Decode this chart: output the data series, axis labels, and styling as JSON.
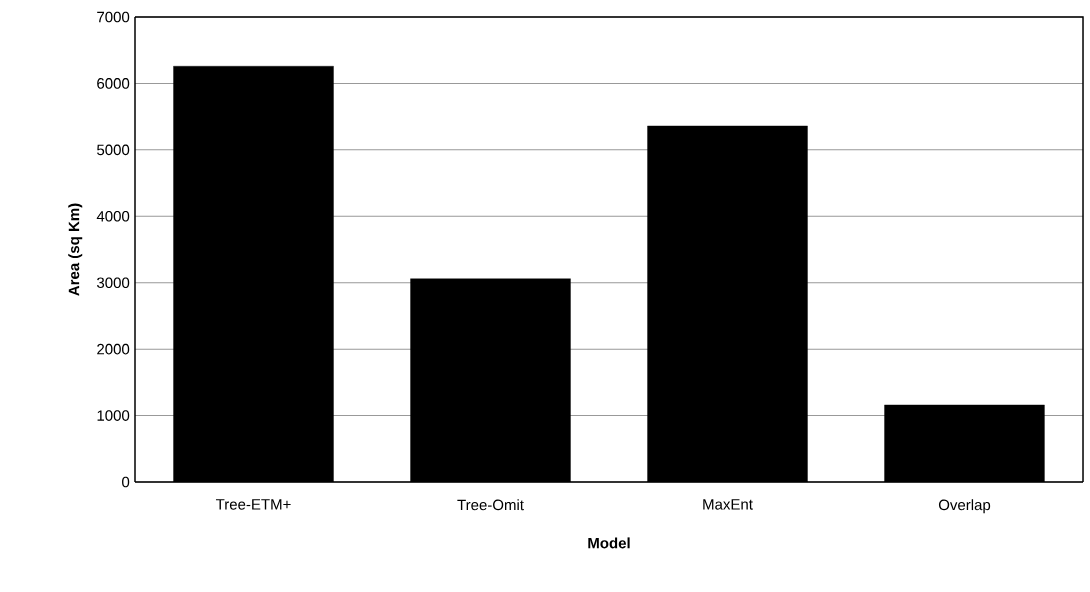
{
  "chart_data": {
    "type": "bar",
    "xlabel": "Model",
    "ylabel": "Area (sq Km)",
    "categories": [
      "Tree-ETM+",
      "Tree-Omit",
      "MaxEnt",
      "Overlap"
    ],
    "values": [
      6260,
      3060,
      5360,
      1160
    ],
    "color": "#000000",
    "ylim": [
      0,
      7000
    ],
    "yticks": [
      0,
      1000,
      2000,
      3000,
      4000,
      5000,
      6000,
      7000
    ],
    "grid": "y"
  }
}
